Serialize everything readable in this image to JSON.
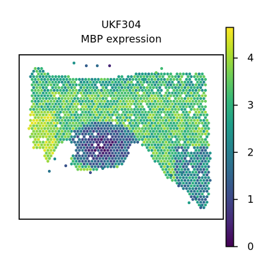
{
  "chart_data": {
    "type": "scatter",
    "title_line1": "UKF304",
    "title_line2": "MBP expression",
    "colorbar": {
      "colormap": "viridis",
      "range": [
        0,
        4.65
      ],
      "ticks": [
        "0",
        "1",
        "2",
        "3",
        "4"
      ]
    },
    "grid": false,
    "legend": "none",
    "regions": [
      {
        "part": "upper-tissue",
        "expression_range": [
          2.8,
          4.2
        ]
      },
      {
        "part": "left-bulge",
        "expression_range": [
          3.6,
          4.6
        ]
      },
      {
        "part": "lower-center-cluster",
        "expression_range": [
          0.1,
          1.9
        ]
      },
      {
        "part": "right-lobe",
        "expression_range": [
          2.0,
          4.2
        ]
      },
      {
        "part": "right-lower-tail",
        "expression_range": [
          1.5,
          3.0
        ]
      }
    ]
  },
  "colors": {
    "frame": "#000000",
    "background": "#ffffff"
  }
}
